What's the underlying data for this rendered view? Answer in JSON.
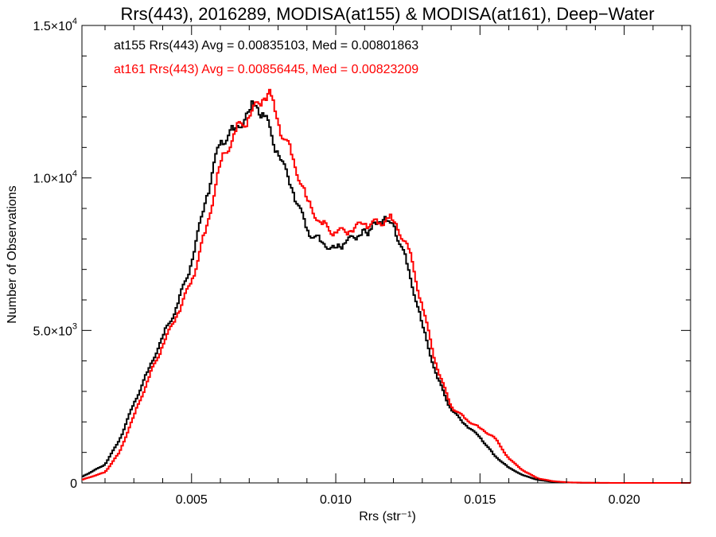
{
  "chart_data": {
    "type": "line",
    "step": true,
    "title": "Rrs(443), 2016289, MODISA(at155) & MODISA(at161), Deep−Water",
    "xlabel": "Rrs (str⁻¹)",
    "ylabel": "Number of Observations",
    "xlim": [
      0.0012,
      0.0223
    ],
    "ylim": [
      0,
      15000
    ],
    "xticks": [
      0.005,
      0.01,
      0.015,
      0.02
    ],
    "xtick_labels": [
      "0.005",
      "0.010",
      "0.015",
      "0.020"
    ],
    "yticks": [
      0,
      5000,
      10000,
      15000
    ],
    "ytick_labels": [
      {
        "value": 0,
        "mantissa": "0",
        "exp": ""
      },
      {
        "value": 5000,
        "mantissa": "5.0×10",
        "exp": "3"
      },
      {
        "value": 10000,
        "mantissa": "1.0×10",
        "exp": "4"
      },
      {
        "value": 15000,
        "mantissa": "1.5×10",
        "exp": "4"
      }
    ],
    "grid": false,
    "legend_position": "top-left",
    "series": [
      {
        "name": "at155",
        "color": "#000000",
        "legend": "at155 Rrs(443) Avg = 0.00835103, Med = 0.00801863",
        "x": [
          0.0012,
          0.002,
          0.0025,
          0.003,
          0.0035,
          0.004,
          0.0045,
          0.005,
          0.0055,
          0.006,
          0.0065,
          0.007,
          0.0072,
          0.0075,
          0.008,
          0.0085,
          0.009,
          0.0095,
          0.01,
          0.0103,
          0.0108,
          0.0112,
          0.0115,
          0.0118,
          0.012,
          0.0125,
          0.013,
          0.0135,
          0.014,
          0.0145,
          0.015,
          0.0155,
          0.016,
          0.0165,
          0.017,
          0.0175,
          0.018,
          0.0185,
          0.019,
          0.02,
          0.0223
        ],
        "y": [
          200,
          600,
          1400,
          2600,
          3700,
          4800,
          5800,
          7200,
          9300,
          11200,
          11600,
          12200,
          12400,
          12100,
          10800,
          9600,
          8300,
          7900,
          7700,
          7850,
          8100,
          8300,
          8550,
          8600,
          8500,
          7100,
          5200,
          3500,
          2400,
          1900,
          1500,
          900,
          500,
          250,
          100,
          40,
          15,
          5,
          2,
          0,
          0
        ]
      },
      {
        "name": "at161",
        "color": "#ff0000",
        "legend": "at161 Rrs(443) Avg = 0.00856445, Med = 0.00823209",
        "x": [
          0.0012,
          0.002,
          0.0025,
          0.003,
          0.0035,
          0.004,
          0.0045,
          0.005,
          0.0055,
          0.006,
          0.0065,
          0.007,
          0.0075,
          0.0078,
          0.008,
          0.0085,
          0.009,
          0.0095,
          0.01,
          0.0105,
          0.011,
          0.0115,
          0.0118,
          0.012,
          0.0125,
          0.013,
          0.0135,
          0.014,
          0.0145,
          0.015,
          0.0155,
          0.016,
          0.0165,
          0.017,
          0.0175,
          0.018,
          0.0185,
          0.019,
          0.02,
          0.0223
        ],
        "y": [
          100,
          350,
          1000,
          2200,
          3400,
          4500,
          5500,
          6600,
          8300,
          10500,
          11500,
          12000,
          12600,
          12700,
          11800,
          10700,
          9300,
          8500,
          8200,
          8250,
          8500,
          8500,
          8700,
          8600,
          7800,
          5800,
          3800,
          2500,
          2100,
          1800,
          1500,
          800,
          400,
          150,
          60,
          20,
          8,
          3,
          0,
          0
        ]
      }
    ]
  }
}
